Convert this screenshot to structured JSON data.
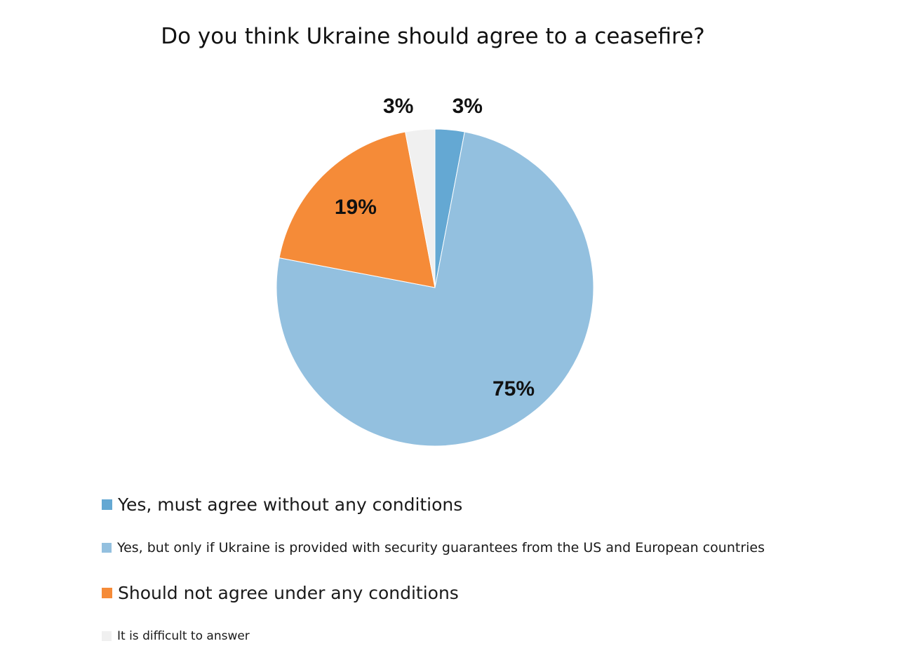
{
  "chart_data": {
    "type": "pie",
    "title": "Do you think Ukraine should agree to a ceasefire?",
    "start_angle_deg": 0,
    "direction": "clockwise",
    "slices": [
      {
        "label": "Yes, must agree without any conditions",
        "value": 3,
        "display": "3%",
        "color": "#64A8D3"
      },
      {
        "label": "Yes, but only if Ukraine is provided with security guarantees from the US and European countries",
        "value": 75,
        "display": "75%",
        "color": "#93C0DF"
      },
      {
        "label": "Should not agree under any conditions",
        "value": 19,
        "display": "19%",
        "color": "#F58B38"
      },
      {
        "label": "It is difficult to answer",
        "value": 3,
        "display": "3%",
        "color": "#F0F0F0"
      }
    ],
    "legend": {
      "placement": "bottom-left"
    }
  }
}
